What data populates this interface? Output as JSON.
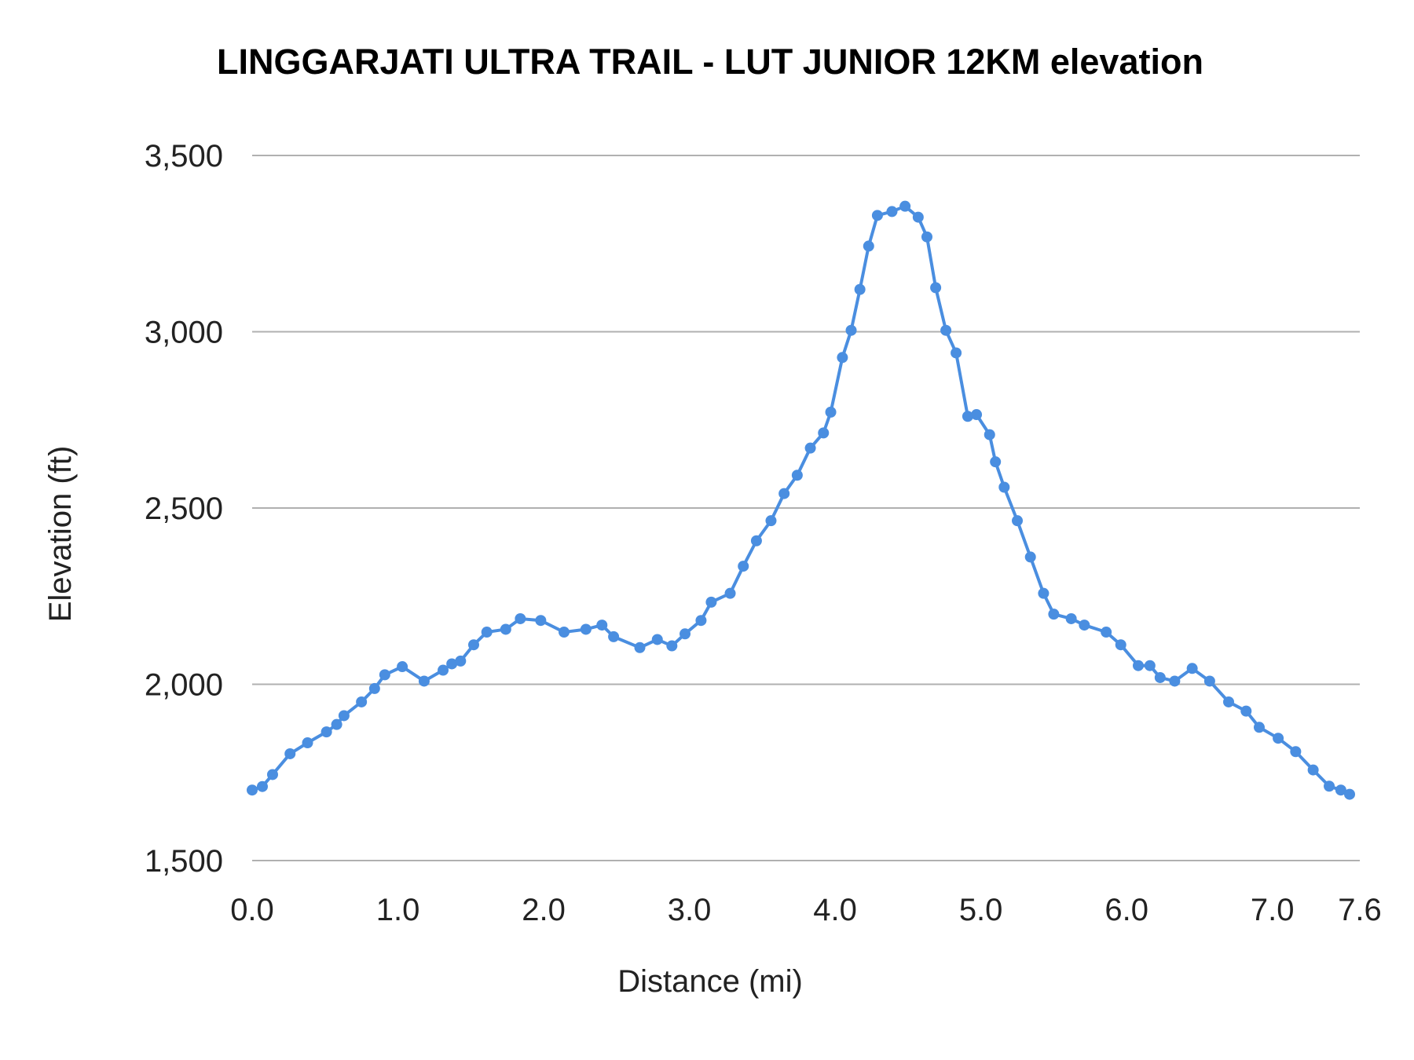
{
  "chart_data": {
    "type": "line",
    "title": "LINGGARJATI ULTRA TRAIL - LUT JUNIOR 12KM elevation",
    "xlabel": "Distance (mi)",
    "ylabel": "Elevation (ft)",
    "xlim": [
      0,
      7.6
    ],
    "ylim": [
      1500,
      3500
    ],
    "xticks": [
      0,
      1,
      2,
      3,
      4,
      5,
      6,
      7,
      7.6
    ],
    "xtick_labels": [
      "0.0",
      "1.0",
      "2.0",
      "3.0",
      "4.0",
      "5.0",
      "6.0",
      "7.0",
      "7.6"
    ],
    "yticks": [
      1500,
      2000,
      2500,
      3000,
      3500
    ],
    "ytick_labels": [
      "1,500",
      "2,000",
      "2,500",
      "3,000",
      "3,500"
    ],
    "grid": true,
    "legend": "none",
    "markers": true,
    "color": "#4a8ee0",
    "series": [
      {
        "x": [
          0,
          0.07,
          0.14,
          0.26,
          0.38,
          0.51,
          0.58,
          0.63,
          0.75,
          0.84,
          0.91,
          1.03,
          1.18,
          1.31,
          1.37,
          1.43,
          1.52,
          1.61,
          1.74,
          1.84,
          1.98,
          2.14,
          2.29,
          2.4,
          2.48,
          2.66,
          2.78,
          2.88,
          2.97,
          3.08,
          3.15,
          3.28,
          3.37,
          3.46,
          3.56,
          3.65,
          3.74,
          3.83,
          3.92,
          3.97,
          4.05,
          4.11,
          4.17,
          4.23,
          4.29,
          4.39,
          4.48,
          4.57,
          4.63,
          4.69,
          4.76,
          4.83,
          4.91,
          4.97,
          5.06,
          5.1,
          5.16,
          5.25,
          5.34,
          5.43,
          5.5,
          5.62,
          5.71,
          5.86,
          5.96,
          6.08,
          6.16,
          6.23,
          6.33,
          6.45,
          6.57,
          6.7,
          6.82,
          6.91,
          7.04,
          7.16,
          7.28,
          7.39,
          7.47,
          7.53
        ],
        "y": [
          1700,
          1710,
          1744,
          1803,
          1834,
          1865,
          1886,
          1911,
          1950,
          1988,
          2027,
          2050,
          2009,
          2040,
          2058,
          2066,
          2112,
          2148,
          2156,
          2186,
          2181,
          2148,
          2156,
          2168,
          2135,
          2104,
          2127,
          2109,
          2143,
          2181,
          2233,
          2258,
          2335,
          2407,
          2464,
          2541,
          2593,
          2670,
          2713,
          2772,
          2927,
          3004,
          3120,
          3243,
          3330,
          3341,
          3356,
          3325,
          3269,
          3125,
          3004,
          2940,
          2760,
          2765,
          2708,
          2631,
          2559,
          2464,
          2361,
          2258,
          2199,
          2186,
          2168,
          2148,
          2112,
          2053,
          2053,
          2019,
          2009,
          2045,
          2009,
          1950,
          1924,
          1878,
          1847,
          1809,
          1757,
          1711,
          1700,
          1688
        ]
      }
    ]
  }
}
